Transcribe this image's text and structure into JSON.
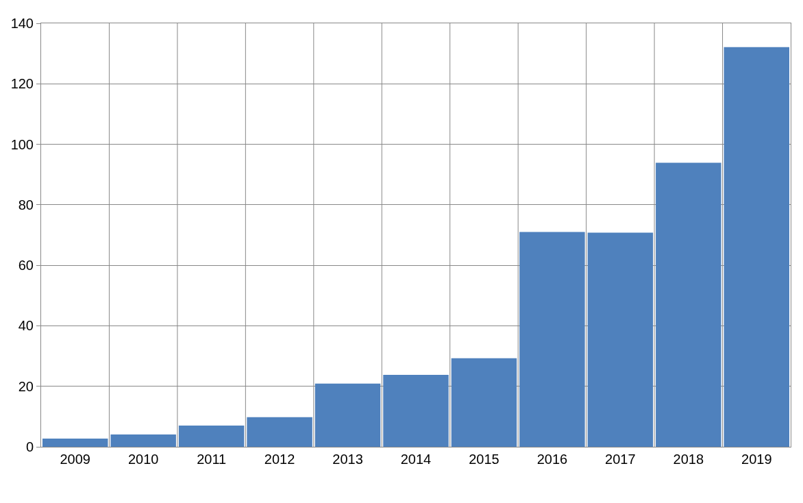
{
  "chart_data": {
    "type": "bar",
    "categories": [
      "2009",
      "2010",
      "2011",
      "2012",
      "2013",
      "2014",
      "2015",
      "2016",
      "2017",
      "2018",
      "2019"
    ],
    "values": [
      2.7,
      4.1,
      7.0,
      9.8,
      20.9,
      23.8,
      29.3,
      71.0,
      70.8,
      93.9,
      132.1
    ],
    "color": "#4f81bd",
    "ylim": [
      0,
      140
    ],
    "yticks": [
      0,
      20,
      40,
      60,
      80,
      100,
      120,
      140
    ],
    "grid": true
  }
}
